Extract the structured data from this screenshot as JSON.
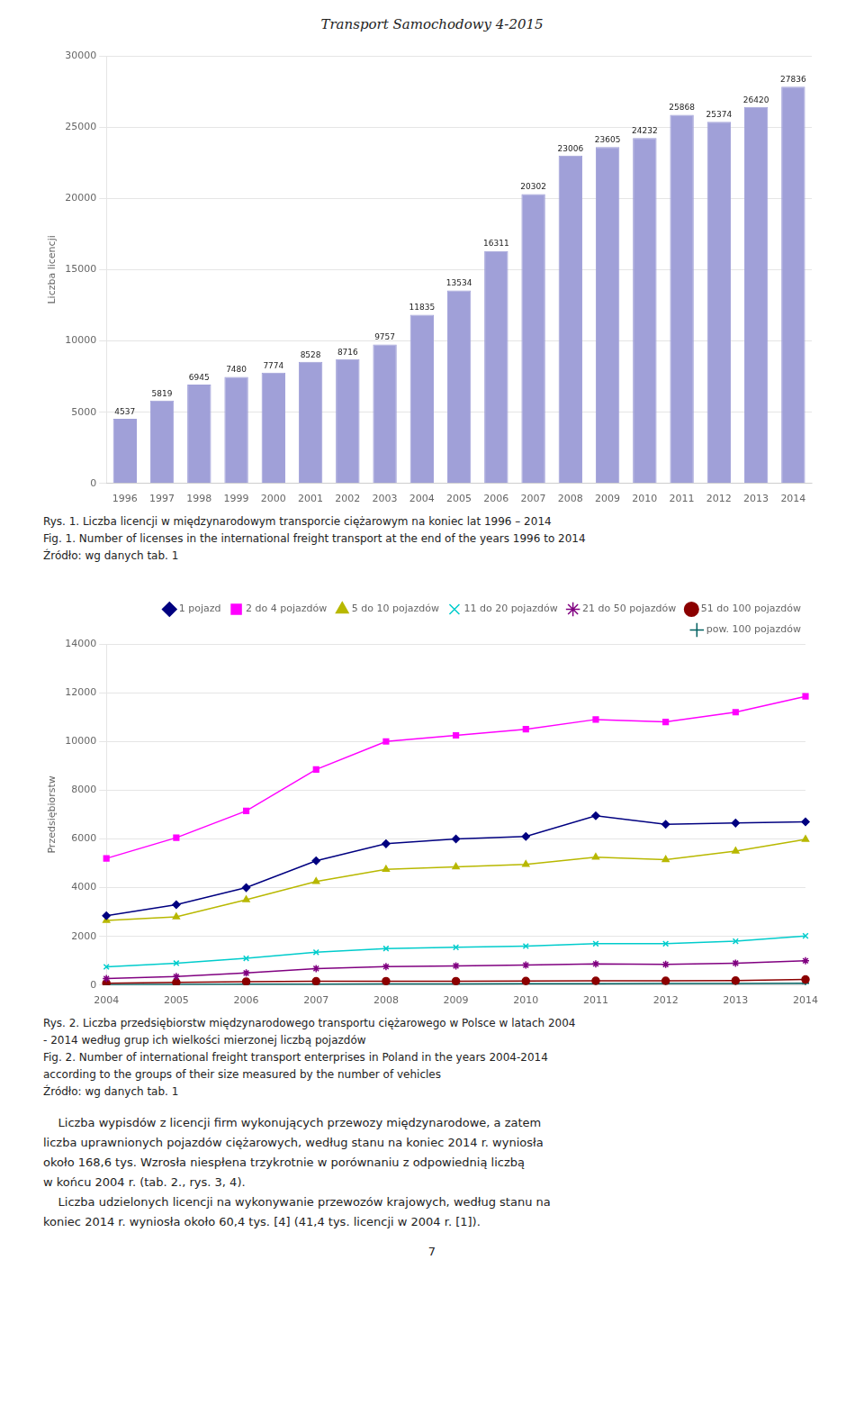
{
  "title": "Transport Samochodowy 4-2015",
  "chart_data": [
    {
      "type": "bar",
      "categories": [
        1996,
        1997,
        1998,
        1999,
        2000,
        2001,
        2002,
        2003,
        2004,
        2005,
        2006,
        2007,
        2008,
        2009,
        2010,
        2011,
        2012,
        2013,
        2014
      ],
      "values": [
        4537,
        5819,
        6945,
        7480,
        7774,
        8528,
        8716,
        9757,
        11835,
        13534,
        16311,
        20302,
        23006,
        23605,
        24232,
        25868,
        25374,
        26420,
        27836
      ],
      "color": "#a0a0d8",
      "ylabel": "Liczba licencji",
      "ylim": [
        0,
        30000
      ],
      "yticks": [
        0,
        5000,
        10000,
        15000,
        20000,
        25000,
        30000
      ],
      "grid": true,
      "data_labels": true,
      "annotations": [
        "Rys. 1. Liczba licencji w międzynarodowym transporcie ciężarowym na koniec lat 1996 – 2014",
        "Fig. 1. Number of licenses in the international freight transport at the end of the years 1996 to 2014",
        "Źródło: wg danych tab. 1"
      ]
    },
    {
      "type": "line",
      "categories": [
        2004,
        2005,
        2006,
        2007,
        2008,
        2009,
        2010,
        2011,
        2012,
        2013,
        2014
      ],
      "series": [
        {
          "name": "1 pojazd",
          "color": "#000080",
          "marker": "diamond",
          "values": [
            2850,
            3300,
            4000,
            5100,
            5800,
            6000,
            6100,
            6950,
            6600,
            6650,
            6700
          ]
        },
        {
          "name": "2 do 4 pojazdów",
          "color": "#FF00FF",
          "marker": "square",
          "values": [
            5200,
            6050,
            7150,
            8850,
            10000,
            10250,
            10500,
            10900,
            10800,
            11200,
            11850
          ]
        },
        {
          "name": "5 do 10 pojazdów",
          "color": "#b8b800",
          "marker": "triangle",
          "values": [
            2650,
            2800,
            3500,
            4250,
            4750,
            4850,
            4950,
            5250,
            5150,
            5500,
            5980
          ]
        },
        {
          "name": "11 do 20 pojazdów",
          "color": "#00CCCC",
          "marker": "x",
          "values": [
            750,
            900,
            1100,
            1350,
            1500,
            1550,
            1600,
            1700,
            1700,
            1800,
            2020
          ]
        },
        {
          "name": "21 do 50 pojazdów",
          "color": "#800080",
          "marker": "star",
          "values": [
            270,
            350,
            500,
            680,
            760,
            790,
            820,
            870,
            850,
            900,
            1000
          ]
        },
        {
          "name": "51 do 100 pojazdów",
          "color": "#8B0000",
          "marker": "circle",
          "values": [
            80,
            110,
            145,
            155,
            160,
            160,
            165,
            175,
            175,
            185,
            230
          ]
        },
        {
          "name": "pow. 100 pojazdów",
          "color": "#006060",
          "marker": "plus",
          "values": [
            20,
            25,
            35,
            40,
            45,
            50,
            55,
            60,
            65,
            70,
            80
          ]
        }
      ],
      "ylabel": "Przedsiębiorstw",
      "ylim": [
        0,
        14000
      ],
      "yticks": [
        0,
        2000,
        4000,
        6000,
        8000,
        10000,
        12000,
        14000
      ],
      "grid": true,
      "legend": "upper right",
      "annotations": [
        "Rys. 2. Liczba przedsiębiorstw międzynarodowego transportu ciężarowego w Polsce w latach 2004",
        "- 2014 według grup ich wielkości mierzonej liczbą pojazdów",
        "Fig. 2. Number of international freight transport enterprises in Poland in the years 2004-2014",
        "according to the groups of their size measured by the number of vehicles",
        "Źródło: wg danych tab. 1"
      ]
    }
  ],
  "annotations": [
    "    Liczba wypisdów z licencji firm wykonujących przewozy międzynarodowe, a zatem",
    "liczba uprawnionych pojazdów ciężarowych, według stanu na koniec 2014 r. wyniosła",
    "około 168,6 tys. Wzrosła niespłena trzykrotnie w porównaniu z odpowiednią liczbą",
    "w końcu 2004 r. (tab. 2., rys. 3, 4).",
    "    Liczba udzielonych licencji na wykonywanie przewozów krajowych, według stanu na",
    "koniec 2014 r. wyniosła około 60,4 tys. [4] (41,4 tys. licencji w 2004 r. [1]).",
    "7"
  ]
}
